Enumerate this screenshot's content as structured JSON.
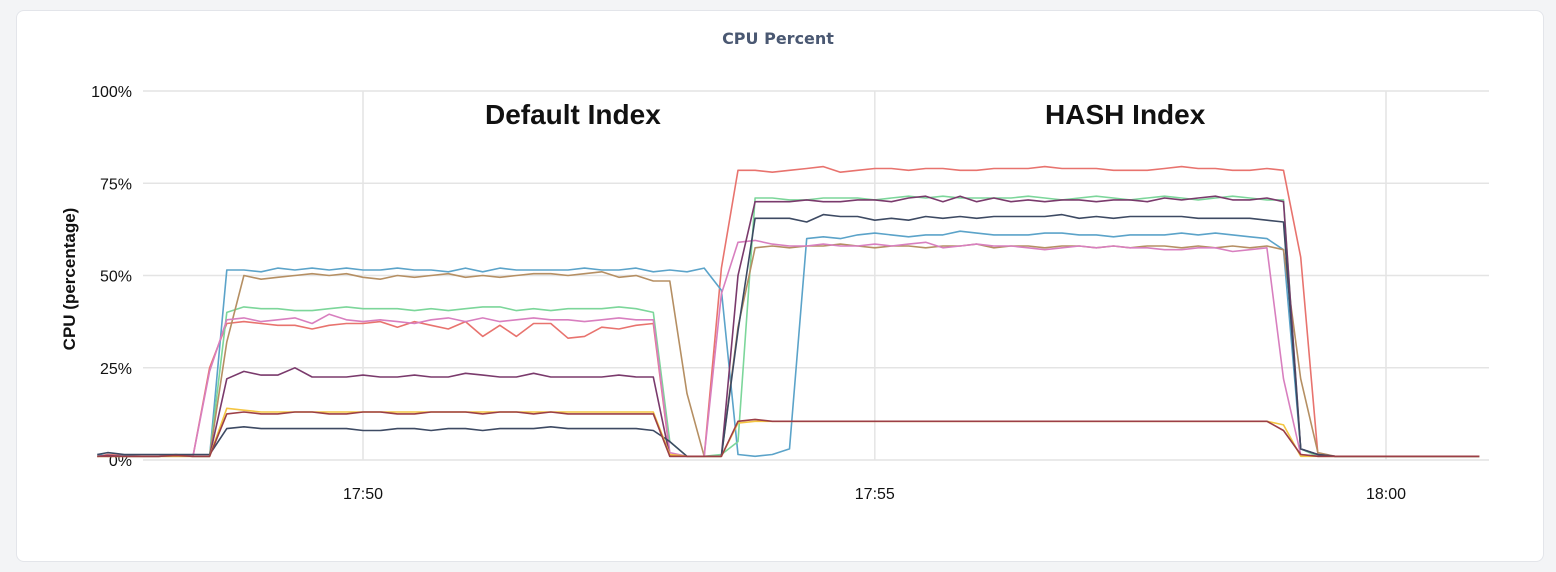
{
  "chart_data": {
    "type": "line",
    "title": "CPU Percent",
    "ylabel": "CPU (percentage)",
    "xlabel": "",
    "ylim": [
      0,
      100
    ],
    "yticks": [
      "0%",
      "25%",
      "50%",
      "75%",
      "100%"
    ],
    "ytick_values": [
      0,
      25,
      50,
      75,
      100
    ],
    "xlim": [
      17.79,
      18.0152
    ],
    "xticks": [
      "17:50",
      "17:55",
      "18:00"
    ],
    "xtick_values": [
      17.8333,
      17.9167,
      18.0
    ],
    "grid": true,
    "annotations": [
      "Default Index",
      "HASH Index"
    ],
    "x": [
      17.79,
      17.7917,
      17.7944,
      17.7972,
      17.8,
      17.8028,
      17.8056,
      17.8083,
      17.8111,
      17.8139,
      17.8167,
      17.8194,
      17.8222,
      17.825,
      17.8278,
      17.8306,
      17.8333,
      17.8361,
      17.8389,
      17.8417,
      17.8444,
      17.8472,
      17.85,
      17.8528,
      17.8556,
      17.8583,
      17.8611,
      17.8639,
      17.8667,
      17.8694,
      17.8722,
      17.875,
      17.8778,
      17.8806,
      17.8833,
      17.8861,
      17.8889,
      17.8917,
      17.8944,
      17.8972,
      17.9,
      17.9028,
      17.9056,
      17.9083,
      17.9111,
      17.9139,
      17.9167,
      17.9194,
      17.9222,
      17.925,
      17.9278,
      17.9306,
      17.9333,
      17.9361,
      17.9389,
      17.9417,
      17.9444,
      17.9472,
      17.95,
      17.9528,
      17.9556,
      17.9583,
      17.9611,
      17.9639,
      17.9667,
      17.9694,
      17.9722,
      17.975,
      17.9778,
      17.9806,
      17.9833,
      17.9861,
      17.9889,
      17.9917,
      17.9944,
      17.9972,
      18.0,
      18.0028,
      18.0056,
      18.0083,
      18.0111,
      18.0139,
      18.0152
    ],
    "series": [
      {
        "color": "#e8736e",
        "values": [
          1.0,
          1.5,
          1.2,
          1.0,
          1.0,
          1.2,
          1.0,
          25.0,
          37.0,
          37.5,
          37.0,
          36.5,
          36.5,
          35.5,
          36.5,
          37.0,
          37.0,
          37.5,
          36.0,
          37.5,
          36.5,
          35.5,
          37.5,
          33.5,
          36.5,
          33.5,
          37.0,
          37.0,
          33.0,
          33.5,
          36.0,
          35.5,
          36.5,
          37.0,
          1.5,
          1.0,
          1.0,
          52.0,
          78.5,
          78.5,
          78.0,
          78.5,
          79.0,
          79.5,
          78.0,
          78.5,
          79.0,
          79.0,
          78.5,
          79.0,
          79.0,
          78.5,
          78.5,
          79.0,
          79.0,
          79.0,
          79.5,
          79.0,
          79.0,
          79.0,
          78.5,
          78.5,
          78.5,
          79.0,
          79.5,
          79.0,
          79.0,
          78.5,
          78.5,
          79.0,
          78.5,
          55.0,
          1.5,
          1.0,
          1.0,
          1.0,
          1.0,
          1.0,
          1.0,
          1.0,
          1.0,
          1.0,
          1.0
        ]
      },
      {
        "color": "#5ba3c9",
        "values": [
          1.5,
          1.0,
          1.2,
          1.0,
          1.0,
          1.5,
          1.0,
          1.0,
          51.5,
          51.5,
          51.0,
          52.0,
          51.5,
          52.0,
          51.5,
          52.0,
          51.5,
          51.5,
          52.0,
          51.5,
          51.5,
          51.0,
          52.0,
          51.0,
          52.0,
          51.5,
          51.5,
          51.5,
          51.5,
          52.0,
          51.5,
          51.5,
          52.0,
          51.0,
          51.5,
          51.0,
          52.0,
          46.0,
          1.5,
          1.0,
          1.5,
          3.0,
          60.0,
          60.5,
          60.0,
          61.0,
          61.5,
          61.0,
          60.5,
          61.0,
          61.0,
          62.0,
          61.5,
          61.0,
          61.0,
          61.0,
          61.5,
          61.5,
          61.0,
          61.0,
          60.5,
          61.0,
          61.0,
          61.0,
          61.5,
          61.0,
          61.5,
          61.0,
          60.5,
          60.0,
          57.0,
          3.0,
          1.5,
          1.0,
          1.0,
          1.0,
          1.0,
          1.0,
          1.0,
          1.0,
          1.0,
          1.0,
          1.0
        ]
      },
      {
        "color": "#7cd69a",
        "values": [
          1.0,
          1.2,
          1.0,
          1.0,
          1.0,
          1.2,
          1.0,
          1.0,
          40.0,
          41.5,
          41.0,
          41.0,
          40.5,
          40.5,
          41.0,
          41.5,
          41.0,
          41.0,
          41.0,
          40.5,
          41.0,
          40.5,
          41.0,
          41.5,
          41.5,
          40.5,
          41.0,
          40.5,
          41.0,
          41.0,
          41.0,
          41.5,
          41.0,
          40.0,
          5.0,
          1.0,
          1.0,
          1.5,
          5.0,
          71.0,
          71.0,
          70.5,
          70.5,
          71.0,
          71.0,
          71.0,
          70.5,
          71.0,
          71.5,
          71.0,
          71.5,
          71.0,
          71.0,
          71.0,
          71.0,
          71.5,
          71.0,
          70.5,
          71.0,
          71.5,
          71.0,
          70.5,
          71.0,
          71.5,
          71.0,
          70.5,
          71.0,
          71.5,
          71.0,
          70.5,
          70.5,
          3.0,
          1.0,
          1.0,
          1.0,
          1.0,
          1.0,
          1.0,
          1.0,
          1.0,
          1.0,
          1.0,
          1.0
        ]
      },
      {
        "color": "#b58f63",
        "values": [
          1.0,
          1.0,
          1.0,
          1.0,
          1.0,
          1.0,
          1.0,
          1.0,
          32.0,
          50.0,
          49.0,
          49.5,
          50.0,
          50.5,
          50.0,
          50.5,
          49.5,
          49.0,
          50.0,
          49.5,
          50.0,
          50.5,
          49.5,
          50.0,
          49.5,
          50.0,
          50.5,
          50.5,
          50.0,
          50.5,
          51.0,
          49.5,
          50.0,
          48.5,
          48.5,
          18.0,
          1.0,
          1.0,
          36.0,
          57.5,
          58.0,
          57.5,
          58.0,
          58.0,
          58.5,
          58.0,
          57.5,
          58.0,
          58.0,
          57.5,
          58.0,
          58.0,
          58.5,
          57.5,
          58.0,
          58.0,
          57.5,
          58.0,
          58.0,
          57.5,
          58.0,
          57.5,
          58.0,
          58.0,
          57.5,
          58.0,
          57.5,
          58.0,
          57.5,
          58.0,
          57.0,
          22.0,
          2.0,
          1.0,
          1.0,
          1.0,
          1.0,
          1.0,
          1.0,
          1.0,
          1.0,
          1.0,
          1.0
        ]
      },
      {
        "color": "#d87fbf",
        "values": [
          1.0,
          1.2,
          1.0,
          1.0,
          1.0,
          1.2,
          1.0,
          24.0,
          38.0,
          38.5,
          37.5,
          38.0,
          38.5,
          37.0,
          39.5,
          38.0,
          37.5,
          38.0,
          37.5,
          37.0,
          38.0,
          38.5,
          37.5,
          38.5,
          37.5,
          38.0,
          38.5,
          38.0,
          38.0,
          37.5,
          38.0,
          38.5,
          38.0,
          38.0,
          2.0,
          1.0,
          1.0,
          45.0,
          59.0,
          59.5,
          58.5,
          58.0,
          58.0,
          58.5,
          58.0,
          58.0,
          58.5,
          58.0,
          58.5,
          59.0,
          57.5,
          58.0,
          58.5,
          58.0,
          58.0,
          57.5,
          57.0,
          57.5,
          58.0,
          57.5,
          58.0,
          57.5,
          57.5,
          57.0,
          57.0,
          57.5,
          57.5,
          56.5,
          57.0,
          57.5,
          22.0,
          1.5,
          1.0,
          1.0,
          1.0,
          1.0,
          1.0,
          1.0,
          1.0,
          1.0,
          1.0,
          1.0,
          1.0
        ]
      },
      {
        "color": "#7a3a6c",
        "values": [
          1.0,
          1.2,
          1.0,
          1.0,
          1.0,
          1.2,
          1.0,
          1.0,
          22.0,
          24.0,
          23.0,
          23.0,
          25.0,
          22.5,
          22.5,
          22.5,
          23.0,
          22.5,
          22.5,
          23.0,
          22.5,
          22.5,
          23.5,
          23.0,
          22.5,
          22.5,
          23.5,
          22.5,
          22.5,
          22.5,
          22.5,
          23.0,
          22.5,
          22.5,
          1.0,
          1.0,
          1.0,
          1.0,
          50.0,
          70.0,
          70.0,
          70.0,
          70.5,
          70.0,
          70.0,
          70.5,
          70.5,
          70.0,
          71.0,
          71.5,
          70.0,
          71.5,
          70.0,
          71.0,
          70.0,
          70.5,
          70.0,
          70.5,
          70.5,
          70.0,
          70.5,
          70.5,
          70.0,
          71.0,
          70.5,
          71.0,
          71.5,
          70.5,
          70.5,
          71.0,
          70.0,
          3.0,
          1.5,
          1.0,
          1.0,
          1.0,
          1.0,
          1.0,
          1.0,
          1.0,
          1.0,
          1.0,
          1.0
        ]
      },
      {
        "color": "#3d4a63",
        "values": [
          1.5,
          2.0,
          1.5,
          1.5,
          1.5,
          1.5,
          1.5,
          1.5,
          8.5,
          9.0,
          8.5,
          8.5,
          8.5,
          8.5,
          8.5,
          8.5,
          8.0,
          8.0,
          8.5,
          8.5,
          8.0,
          8.5,
          8.5,
          8.0,
          8.5,
          8.5,
          8.5,
          9.0,
          8.5,
          8.5,
          8.5,
          8.5,
          8.5,
          8.0,
          5.0,
          1.0,
          1.0,
          1.0,
          35.0,
          65.5,
          65.5,
          65.5,
          64.5,
          66.5,
          66.0,
          66.0,
          65.0,
          65.5,
          65.0,
          66.0,
          65.5,
          66.0,
          65.5,
          66.0,
          66.0,
          66.0,
          66.0,
          66.5,
          65.5,
          66.0,
          65.5,
          66.0,
          66.0,
          66.0,
          66.0,
          65.5,
          65.5,
          65.5,
          65.5,
          65.0,
          64.5,
          3.0,
          1.5,
          1.0,
          1.0,
          1.0,
          1.0,
          1.0,
          1.0,
          1.0,
          1.0,
          1.0,
          1.0
        ]
      },
      {
        "color": "#f4c542",
        "values": [
          1.0,
          1.0,
          1.0,
          1.0,
          1.0,
          1.0,
          1.0,
          1.0,
          14.0,
          13.5,
          13.0,
          13.0,
          13.0,
          13.0,
          13.0,
          13.0,
          13.0,
          13.0,
          13.0,
          13.0,
          13.0,
          13.0,
          13.0,
          13.0,
          13.0,
          13.0,
          13.0,
          13.0,
          13.0,
          13.0,
          13.0,
          13.0,
          13.0,
          13.0,
          1.5,
          1.0,
          1.0,
          1.0,
          10.0,
          10.5,
          10.5,
          10.5,
          10.5,
          10.5,
          10.5,
          10.5,
          10.5,
          10.5,
          10.5,
          10.5,
          10.5,
          10.5,
          10.5,
          10.5,
          10.5,
          10.5,
          10.5,
          10.5,
          10.5,
          10.5,
          10.5,
          10.5,
          10.5,
          10.5,
          10.5,
          10.5,
          10.5,
          10.5,
          10.5,
          10.5,
          9.5,
          1.0,
          1.0,
          1.0,
          1.0,
          1.0,
          1.0,
          1.0,
          1.0,
          1.0,
          1.0,
          1.0,
          1.0
        ]
      },
      {
        "color": "#9c3f46",
        "values": [
          1.0,
          1.0,
          1.0,
          1.0,
          1.0,
          1.2,
          1.0,
          1.0,
          12.5,
          13.0,
          12.5,
          12.5,
          13.0,
          13.0,
          12.5,
          12.5,
          13.0,
          13.0,
          12.5,
          12.5,
          13.0,
          13.0,
          13.0,
          12.5,
          13.0,
          13.0,
          12.5,
          13.0,
          12.5,
          12.5,
          12.5,
          12.5,
          12.5,
          12.5,
          1.0,
          1.0,
          1.0,
          1.0,
          10.5,
          11.0,
          10.5,
          10.5,
          10.5,
          10.5,
          10.5,
          10.5,
          10.5,
          10.5,
          10.5,
          10.5,
          10.5,
          10.5,
          10.5,
          10.5,
          10.5,
          10.5,
          10.5,
          10.5,
          10.5,
          10.5,
          10.5,
          10.5,
          10.5,
          10.5,
          10.5,
          10.5,
          10.5,
          10.5,
          10.5,
          10.5,
          8.0,
          1.5,
          1.0,
          1.0,
          1.0,
          1.0,
          1.0,
          1.0,
          1.0,
          1.0,
          1.0,
          1.0,
          1.0
        ]
      }
    ]
  }
}
